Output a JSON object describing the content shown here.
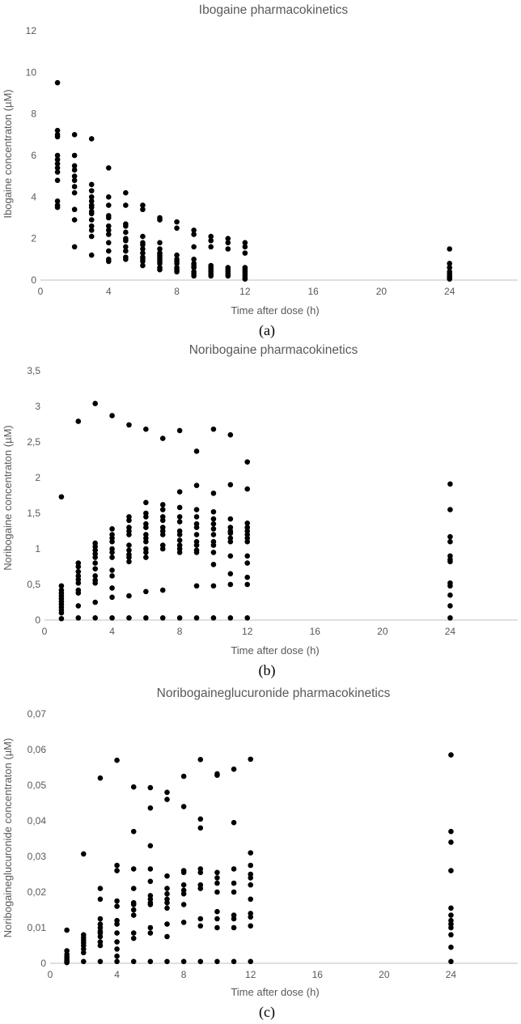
{
  "colors": {
    "marker": "#000000",
    "text": "#595959",
    "axis": "#bfbfbf",
    "caption": "#000000"
  },
  "chart_data": [
    {
      "type": "scatter",
      "title": "Ibogaine pharmacokinetics",
      "xlabel": "Time after dose (h)",
      "ylabel": "Ibogaine concentraton (µM)",
      "caption": "(a)",
      "xlim": [
        0,
        28
      ],
      "ylim": [
        0,
        12
      ],
      "xticks": [
        0,
        4,
        8,
        12,
        16,
        20,
        24
      ],
      "yticks": [
        0,
        2,
        4,
        6,
        8,
        10,
        12
      ],
      "xtick_labels": [
        "0",
        "4",
        "8",
        "12",
        "16",
        "20",
        "24"
      ],
      "ytick_labels": [
        "0",
        "2",
        "4",
        "6",
        "8",
        "10",
        "12"
      ],
      "series": [
        {
          "x": 1,
          "values": [
            9.5,
            7.2,
            7.0,
            6.9,
            6.0,
            5.8,
            5.6,
            5.4,
            5.2,
            4.8,
            3.8,
            3.6,
            3.5
          ]
        },
        {
          "x": 2,
          "values": [
            7.0,
            6.0,
            5.5,
            5.3,
            5.0,
            4.8,
            4.5,
            4.2,
            3.4,
            2.9,
            1.6
          ]
        },
        {
          "x": 3,
          "values": [
            6.8,
            4.6,
            4.3,
            4.0,
            3.8,
            3.6,
            3.5,
            3.3,
            3.2,
            2.9,
            2.6,
            2.4,
            2.1,
            1.2
          ]
        },
        {
          "x": 4,
          "values": [
            5.4,
            4.0,
            3.6,
            3.1,
            3.0,
            2.6,
            2.4,
            2.2,
            1.8,
            1.4,
            1.0,
            0.9
          ]
        },
        {
          "x": 5,
          "values": [
            4.2,
            3.6,
            2.7,
            2.6,
            2.3,
            2.0,
            1.9,
            1.6,
            1.4,
            1.1,
            1.0
          ]
        },
        {
          "x": 6,
          "values": [
            3.6,
            3.4,
            2.1,
            1.8,
            1.7,
            1.5,
            1.3,
            1.1,
            1.0,
            0.9,
            0.7
          ]
        },
        {
          "x": 7,
          "values": [
            3.0,
            2.9,
            1.8,
            1.5,
            1.3,
            1.2,
            1.1,
            1.0,
            0.9,
            0.8,
            0.6,
            0.5
          ]
        },
        {
          "x": 8,
          "values": [
            2.8,
            2.5,
            1.2,
            1.0,
            0.9,
            0.8,
            0.6,
            0.5,
            0.4
          ]
        },
        {
          "x": 9,
          "values": [
            2.4,
            2.2,
            1.6,
            1.0,
            0.8,
            0.7,
            0.6,
            0.4,
            0.3,
            0.2
          ]
        },
        {
          "x": 10,
          "values": [
            2.1,
            1.9,
            1.6,
            0.7,
            0.6,
            0.5,
            0.4,
            0.3,
            0.2
          ]
        },
        {
          "x": 11,
          "values": [
            2.0,
            1.8,
            1.5,
            0.6,
            0.5,
            0.4,
            0.3,
            0.2
          ]
        },
        {
          "x": 12,
          "values": [
            1.8,
            1.6,
            1.3,
            0.6,
            0.5,
            0.4,
            0.3,
            0.2,
            0.1,
            0.05
          ]
        },
        {
          "x": 24,
          "values": [
            1.5,
            0.8,
            0.6,
            0.4,
            0.3,
            0.2,
            0.15,
            0.1,
            0.05
          ]
        }
      ]
    },
    {
      "type": "scatter",
      "title": "Noribogaine pharmacokinetics",
      "xlabel": "Time after dose (h)",
      "ylabel": "Noribogaine concentraton (µM)",
      "caption": "(b)",
      "xlim": [
        0,
        28
      ],
      "ylim": [
        0,
        3.5
      ],
      "xticks": [
        0,
        4,
        8,
        12,
        16,
        20,
        24
      ],
      "yticks": [
        0,
        0.5,
        1,
        1.5,
        2,
        2.5,
        3,
        3.5
      ],
      "xtick_labels": [
        "0",
        "4",
        "8",
        "12",
        "16",
        "20",
        "24"
      ],
      "ytick_labels": [
        "0",
        "0,5",
        "1",
        "1,5",
        "2",
        "2,5",
        "3",
        "3,5"
      ],
      "series": [
        {
          "x": 1,
          "values": [
            1.73,
            0.48,
            0.42,
            0.38,
            0.34,
            0.3,
            0.26,
            0.22,
            0.18,
            0.14,
            0.1,
            0.02
          ]
        },
        {
          "x": 2,
          "values": [
            2.79,
            0.8,
            0.75,
            0.68,
            0.62,
            0.57,
            0.52,
            0.42,
            0.38,
            0.2,
            0.03
          ]
        },
        {
          "x": 3,
          "values": [
            3.04,
            1.08,
            1.03,
            0.98,
            0.93,
            0.88,
            0.8,
            0.72,
            0.62,
            0.56,
            0.52,
            0.25,
            0.03
          ]
        },
        {
          "x": 4,
          "values": [
            2.87,
            1.28,
            1.2,
            1.15,
            1.1,
            1.0,
            0.95,
            0.88,
            0.7,
            0.62,
            0.45,
            0.32,
            0.03
          ]
        },
        {
          "x": 5,
          "values": [
            2.74,
            1.45,
            1.4,
            1.3,
            1.25,
            1.2,
            1.05,
            0.98,
            0.92,
            0.88,
            0.82,
            0.34,
            0.03
          ]
        },
        {
          "x": 6,
          "values": [
            2.68,
            1.65,
            1.5,
            1.45,
            1.35,
            1.3,
            1.2,
            1.15,
            1.1,
            1.0,
            0.95,
            0.88,
            0.4,
            0.03
          ]
        },
        {
          "x": 7,
          "values": [
            2.55,
            1.62,
            1.55,
            1.45,
            1.4,
            1.3,
            1.25,
            1.2,
            1.05,
            1.0,
            0.42,
            0.03
          ]
        },
        {
          "x": 8,
          "values": [
            2.66,
            1.8,
            1.58,
            1.45,
            1.38,
            1.25,
            1.2,
            1.12,
            1.05,
            1.0,
            0.95,
            0.03
          ]
        },
        {
          "x": 9,
          "values": [
            2.37,
            1.89,
            1.55,
            1.45,
            1.35,
            1.3,
            1.2,
            1.1,
            1.05,
            0.98,
            0.95,
            0.48,
            0.03
          ]
        },
        {
          "x": 10,
          "values": [
            2.68,
            1.78,
            1.52,
            1.42,
            1.35,
            1.28,
            1.2,
            1.1,
            1.05,
            0.95,
            0.78,
            0.48,
            0.03
          ]
        },
        {
          "x": 11,
          "values": [
            2.6,
            1.9,
            1.42,
            1.3,
            1.25,
            1.22,
            1.15,
            1.1,
            0.9,
            0.65,
            0.5,
            0.03
          ]
        },
        {
          "x": 12,
          "values": [
            2.22,
            1.84,
            1.36,
            1.3,
            1.25,
            1.2,
            1.15,
            1.1,
            0.9,
            0.8,
            0.6,
            0.5,
            0.03
          ]
        },
        {
          "x": 24,
          "values": [
            1.91,
            1.55,
            1.17,
            1.1,
            0.9,
            0.85,
            0.82,
            0.52,
            0.48,
            0.35,
            0.2,
            0.03
          ]
        }
      ]
    },
    {
      "type": "scatter",
      "title": "Noribogaineglucuronide pharmacokinetics",
      "xlabel": "Time after dose (h)",
      "ylabel": "Noribogaineglucuronide concentraton (µM)",
      "caption": "(c)",
      "xlim": [
        0,
        28
      ],
      "ylim": [
        0,
        0.07
      ],
      "xticks": [
        0,
        4,
        8,
        12,
        16,
        20,
        24
      ],
      "yticks": [
        0,
        0.01,
        0.02,
        0.03,
        0.04,
        0.05,
        0.06,
        0.07
      ],
      "xtick_labels": [
        "0",
        "4",
        "8",
        "12",
        "16",
        "20",
        "24"
      ],
      "ytick_labels": [
        "0",
        "0,01",
        "0,02",
        "0,03",
        "0,04",
        "0,05",
        "0,06",
        "0,07"
      ],
      "series": [
        {
          "x": 1,
          "values": [
            0.0093,
            0.0035,
            0.0025,
            0.0018,
            0.0012,
            0.0008,
            0.0005,
            0.0002
          ]
        },
        {
          "x": 2,
          "values": [
            0.0307,
            0.008,
            0.0072,
            0.0065,
            0.0058,
            0.005,
            0.004,
            0.003,
            0.0005
          ]
        },
        {
          "x": 3,
          "values": [
            0.052,
            0.021,
            0.018,
            0.0125,
            0.011,
            0.01,
            0.009,
            0.0085,
            0.0075,
            0.006,
            0.005,
            0.0005
          ]
        },
        {
          "x": 4,
          "values": [
            0.057,
            0.0275,
            0.026,
            0.0175,
            0.016,
            0.012,
            0.011,
            0.0085,
            0.006,
            0.004,
            0.002,
            0.0005
          ]
        },
        {
          "x": 5,
          "values": [
            0.0495,
            0.037,
            0.0265,
            0.021,
            0.017,
            0.0165,
            0.015,
            0.0135,
            0.0085,
            0.007,
            0.0005
          ]
        },
        {
          "x": 6,
          "values": [
            0.0493,
            0.0436,
            0.033,
            0.0265,
            0.023,
            0.019,
            0.018,
            0.017,
            0.0165,
            0.01,
            0.0085,
            0.0005
          ]
        },
        {
          "x": 7,
          "values": [
            0.048,
            0.046,
            0.0245,
            0.021,
            0.0195,
            0.018,
            0.017,
            0.0155,
            0.011,
            0.0075,
            0.0005
          ]
        },
        {
          "x": 8,
          "values": [
            0.0525,
            0.044,
            0.026,
            0.0255,
            0.022,
            0.0205,
            0.0195,
            0.0165,
            0.0115,
            0.0005
          ]
        },
        {
          "x": 9,
          "values": [
            0.0572,
            0.0405,
            0.038,
            0.0265,
            0.0255,
            0.022,
            0.021,
            0.0125,
            0.0105,
            0.0005
          ]
        },
        {
          "x": 10,
          "values": [
            0.0532,
            0.0528,
            0.0255,
            0.024,
            0.0225,
            0.02,
            0.0145,
            0.0125,
            0.01,
            0.0005
          ]
        },
        {
          "x": 11,
          "values": [
            0.0545,
            0.0395,
            0.0265,
            0.0225,
            0.02,
            0.0135,
            0.0125,
            0.01,
            0.0005
          ]
        },
        {
          "x": 12,
          "values": [
            0.0573,
            0.031,
            0.0275,
            0.025,
            0.024,
            0.022,
            0.018,
            0.014,
            0.013,
            0.0105,
            0.0005
          ]
        },
        {
          "x": 24,
          "values": [
            0.0585,
            0.037,
            0.034,
            0.026,
            0.0155,
            0.0135,
            0.012,
            0.011,
            0.01,
            0.008,
            0.0045,
            0.0005
          ]
        }
      ]
    }
  ]
}
